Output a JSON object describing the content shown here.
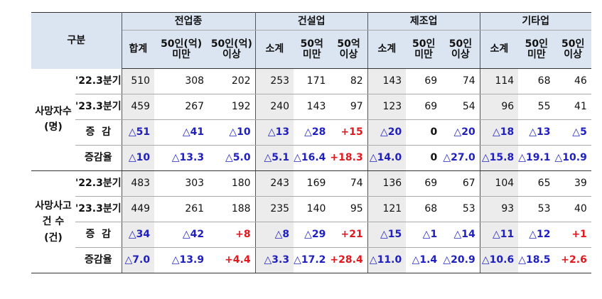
{
  "header": {
    "gubun": "구분",
    "groups": [
      "전업종",
      "건설업",
      "제조업",
      "기타업"
    ],
    "subcols": [
      [
        "합계",
        "50인(억)\n미만",
        "50인(억)\n이상"
      ],
      [
        "소계",
        "50억\n미만",
        "50억\n이상"
      ],
      [
        "소계",
        "50인\n미만",
        "50인\n이상"
      ],
      [
        "소계",
        "50인\n미만",
        "50인\n이상"
      ]
    ]
  },
  "blocks": [
    {
      "category": "사망자수\n(명)",
      "rows": [
        {
          "label": "'22.3분기",
          "values": [
            "510",
            "308",
            "202",
            "253",
            "171",
            "82",
            "143",
            "69",
            "74",
            "114",
            "68",
            "46"
          ]
        },
        {
          "label": "'23.3분기",
          "values": [
            "459",
            "267",
            "192",
            "240",
            "143",
            "97",
            "123",
            "69",
            "54",
            "96",
            "55",
            "41"
          ]
        },
        {
          "label": "증  감",
          "values": [
            "△51",
            "△41",
            "△10",
            "△13",
            "△28",
            "+15",
            "△20",
            "0",
            "△20",
            "△18",
            "△13",
            "△5"
          ]
        },
        {
          "label": "증감율",
          "values": [
            "△10",
            "△13.3",
            "△5.0",
            "△5.1",
            "△16.4",
            "+18.3",
            "△14.0",
            "0",
            "△27.0",
            "△15.8",
            "△19.1",
            "△10.9"
          ]
        }
      ]
    },
    {
      "category": "사망사고\n건  수\n(건)",
      "rows": [
        {
          "label": "'22.3분기",
          "values": [
            "483",
            "303",
            "180",
            "243",
            "169",
            "74",
            "136",
            "69",
            "67",
            "104",
            "65",
            "39"
          ]
        },
        {
          "label": "'23.3분기",
          "values": [
            "449",
            "261",
            "188",
            "235",
            "140",
            "95",
            "121",
            "68",
            "53",
            "93",
            "53",
            "40"
          ]
        },
        {
          "label": "증  감",
          "values": [
            "△34",
            "△42",
            "+8",
            "△8",
            "△29",
            "+21",
            "△15",
            "△1",
            "△14",
            "△11",
            "△12",
            "+1"
          ]
        },
        {
          "label": "증감율",
          "values": [
            "△7.0",
            "△13.9",
            "+4.4",
            "△3.3",
            "△17.2",
            "+28.4",
            "△11.0",
            "△1.4",
            "△20.9",
            "△10.6",
            "△18.5",
            "+2.6"
          ]
        }
      ]
    }
  ],
  "colors": {
    "header_bg": "#dbe5f1",
    "subtotal_bg": "#ececec",
    "decrease": "#1f1fbf",
    "increase": "#e0181f"
  }
}
